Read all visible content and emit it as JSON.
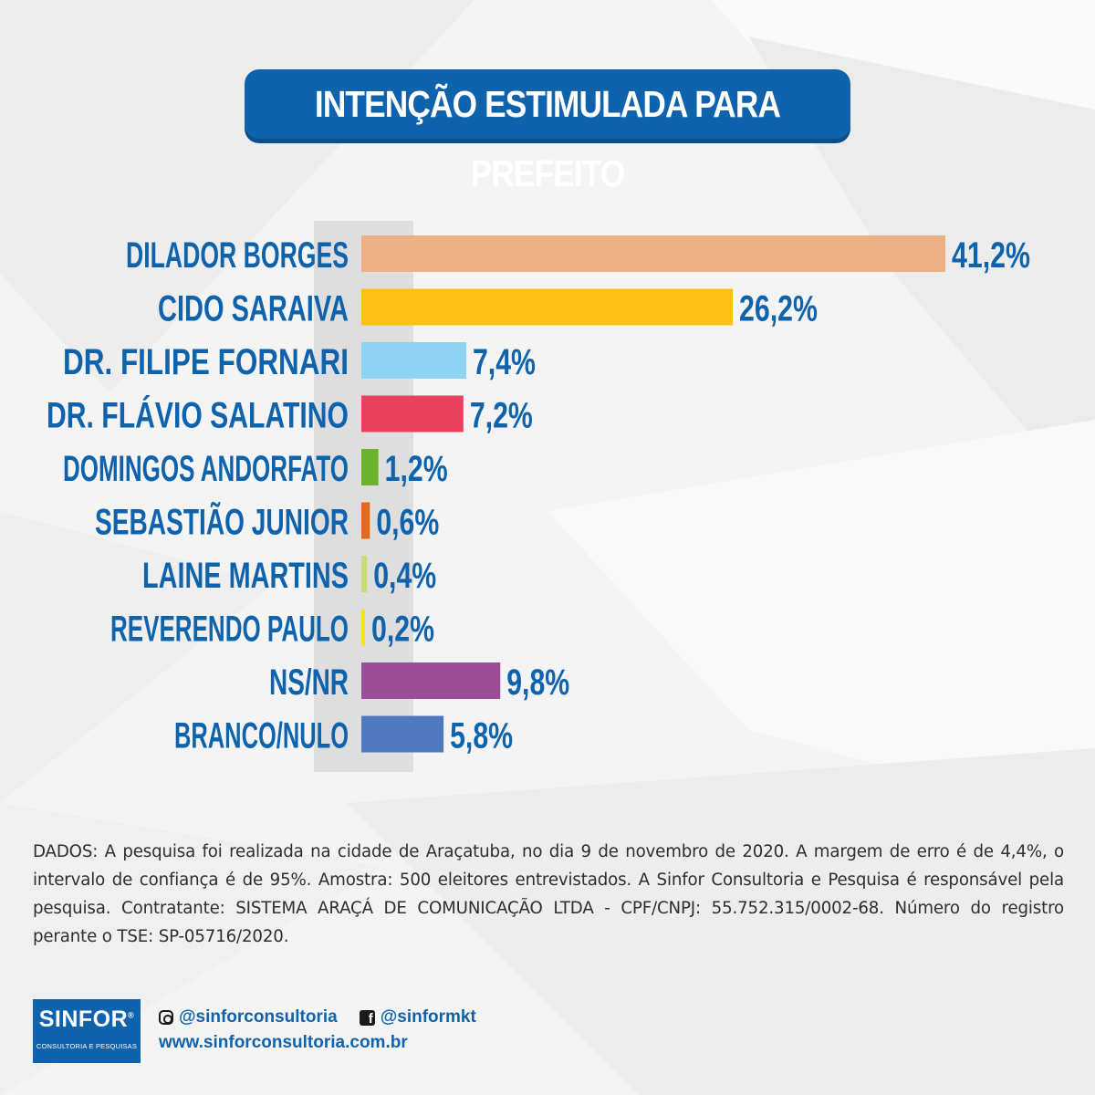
{
  "title": "INTENÇÃO ESTIMULADA PARA PREFEITO",
  "chart_data": {
    "type": "bar",
    "orientation": "horizontal",
    "title": "INTENÇÃO ESTIMULADA PARA PREFEITO",
    "categories": [
      "DILADOR BORGES",
      "CIDO SARAIVA",
      "DR. FILIPE FORNARI",
      "DR. FLÁVIO SALATINO",
      "DOMINGOS ANDORFATO",
      "SEBASTIÃO JUNIOR",
      "LAINE MARTINS",
      "REVERENDO PAULO",
      "NS/NR",
      "BRANCO/NULO"
    ],
    "values": [
      41.2,
      26.2,
      7.4,
      7.2,
      1.2,
      0.6,
      0.4,
      0.2,
      9.8,
      5.8
    ],
    "value_labels": [
      "41,2%",
      "26,2%",
      "7,4%",
      "7,2%",
      "1,2%",
      "0,6%",
      "0,4%",
      "0,2%",
      "9,8%",
      "5,8%"
    ],
    "colors": [
      "#eeb185",
      "#fcc016",
      "#8fd2f4",
      "#e8405e",
      "#6cb32c",
      "#e06c1b",
      "#c8dc78",
      "#f3e51c",
      "#9b4d97",
      "#5079bf"
    ],
    "unit": "%",
    "xlim": [
      0,
      41.2
    ]
  },
  "dados": "DADOS: A pesquisa foi realizada na cidade de Araçatuba, no dia 9 de novembro de 2020. A margem de erro é de 4,4%, o intervalo de confiança é de 95%. Amostra: 500 eleitores entrevistados. A Sinfor Consultoria e Pesquisa é responsável pela pesquisa. Contratante: SISTEMA ARAÇÁ DE COMUNICAÇÃO LTDA - CPF/CNPJ: 55.752.315/0002-68. Número do registro perante o TSE: SP-05716/2020.",
  "footer": {
    "logo_name": "SINFOR",
    "logo_reg": "®",
    "logo_sub": "CONSULTORIA E PESQUISAS",
    "instagram": "@sinforconsultoria",
    "facebook": "@sinformkt",
    "website": "www.sinforconsultoria.com.br"
  },
  "colors": {
    "brand_blue": "#0f63ad"
  }
}
